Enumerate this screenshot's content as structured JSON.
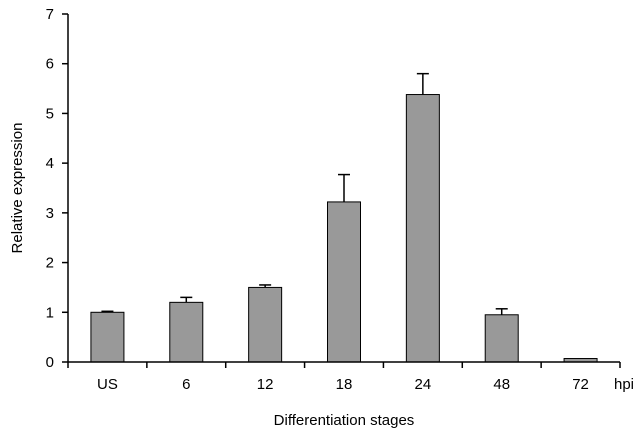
{
  "chart_data": {
    "type": "bar",
    "categories": [
      "US",
      "6",
      "12",
      "18",
      "24",
      "48",
      "72"
    ],
    "values": [
      1.0,
      1.2,
      1.5,
      3.22,
      5.38,
      0.95,
      0.07
    ],
    "errors": [
      0.02,
      0.1,
      0.05,
      0.55,
      0.42,
      0.12,
      0.0
    ],
    "xlabel": "Differentiation stages",
    "ylabel": "Relative expression",
    "x_unit": "hpi",
    "ylim": [
      0,
      7
    ],
    "yticks": [
      "0",
      "1",
      "2",
      "3",
      "4",
      "5",
      "6",
      "7"
    ],
    "bar_color": "#999999",
    "grid": false,
    "legend": "none"
  }
}
